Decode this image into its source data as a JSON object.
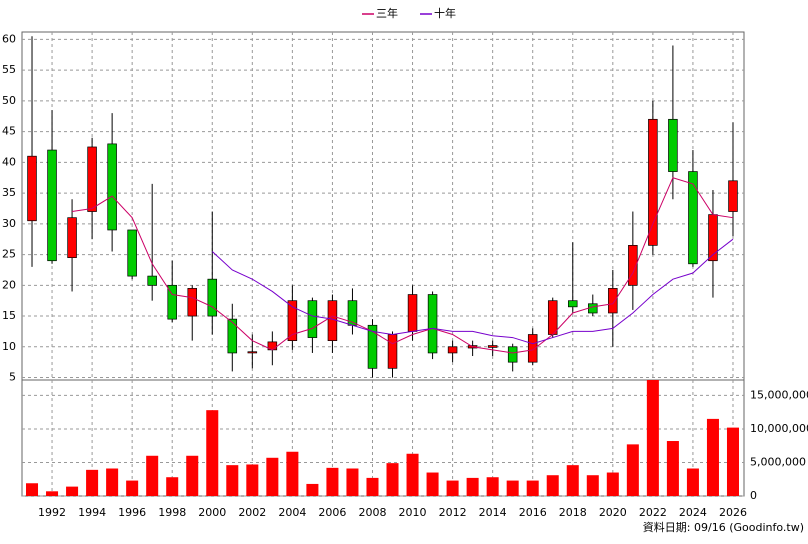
{
  "chart_data": [
    {
      "type": "candlestick",
      "x": [
        1991,
        1992,
        1993,
        1994,
        1995,
        1996,
        1997,
        1998,
        1999,
        2000,
        2001,
        2002,
        2003,
        2004,
        2005,
        2006,
        2007,
        2008,
        2009,
        2010,
        2011,
        2012,
        2013,
        2014,
        2015,
        2016,
        2017,
        2018,
        2019,
        2020,
        2021,
        2022,
        2023,
        2024,
        2025,
        2026
      ],
      "open": [
        30.5,
        42,
        24.5,
        32,
        43,
        29,
        21.5,
        20,
        15,
        21,
        14.5,
        9,
        9.5,
        11,
        17.5,
        11,
        17.5,
        13.5,
        6.5,
        12.5,
        18.5,
        9,
        9.8,
        9.9,
        10,
        7.5,
        12,
        17.5,
        17,
        15.5,
        20,
        26.5,
        47,
        38.5,
        24,
        32
      ],
      "close": [
        41,
        24,
        31,
        42.5,
        29,
        21.5,
        20,
        14.5,
        19.5,
        15,
        9,
        9.2,
        10.8,
        17.5,
        11.5,
        17.5,
        13.5,
        6.5,
        12,
        18.5,
        9,
        10,
        10.2,
        10.2,
        7.5,
        12,
        17.5,
        16.5,
        15.5,
        19.5,
        26.5,
        47,
        38.5,
        23.5,
        31.5,
        37
      ],
      "high": [
        60.5,
        48.5,
        34,
        44,
        48,
        29,
        36.5,
        24,
        20,
        32,
        17,
        12,
        12.5,
        20,
        18,
        18.5,
        19.5,
        14.5,
        12.5,
        20,
        19,
        11,
        11,
        11,
        10.5,
        13,
        18,
        27,
        18.5,
        22.5,
        32,
        50,
        59,
        42,
        35.5,
        46.5
      ],
      "low": [
        23,
        23.5,
        19,
        27.5,
        25.5,
        21,
        17.5,
        14,
        11,
        12,
        6,
        6.5,
        7,
        9.5,
        9,
        9,
        12,
        5,
        5,
        11,
        8,
        7.5,
        8.5,
        8.5,
        6,
        7,
        11.5,
        15.5,
        15,
        10,
        16,
        25,
        34,
        23,
        18,
        28
      ],
      "up_color": "#ff0000",
      "down_color": "#00cc00",
      "series": [
        {
          "name": "三年",
          "color": "#cc0066",
          "values": [
            null,
            null,
            32,
            32.5,
            34.5,
            31,
            23.5,
            18.5,
            18,
            16.5,
            14,
            11,
            9.5,
            12,
            13,
            15,
            14,
            12.5,
            10.5,
            12,
            13,
            12,
            10,
            9.5,
            9,
            9.5,
            12,
            15.5,
            16.5,
            17,
            22,
            30,
            37.5,
            36.5,
            31.5,
            31
          ]
        },
        {
          "name": "十年",
          "color": "#7700cc",
          "values": [
            null,
            null,
            null,
            null,
            null,
            null,
            null,
            null,
            null,
            25.5,
            22.5,
            21,
            19,
            16.5,
            15,
            14.5,
            13.5,
            12.5,
            12,
            12.5,
            13,
            12.5,
            12.5,
            11.8,
            11.5,
            10.5,
            11.5,
            12.5,
            12.5,
            13,
            15.5,
            18.5,
            21,
            22,
            25,
            27.5
          ]
        }
      ],
      "xlim": [
        1990.5,
        2026.55
      ],
      "xticks": [
        1992,
        1994,
        1996,
        1998,
        2000,
        2002,
        2004,
        2006,
        2008,
        2010,
        2012,
        2014,
        2016,
        2018,
        2020,
        2022,
        2024,
        2026
      ],
      "ylim": [
        4.6,
        61.2
      ],
      "yticks": [
        5,
        10,
        15,
        20,
        25,
        30,
        35,
        40,
        45,
        50,
        55,
        60
      ],
      "grid": true
    },
    {
      "type": "bar",
      "x": [
        1991,
        1992,
        1993,
        1994,
        1995,
        1996,
        1997,
        1998,
        1999,
        2000,
        2001,
        2002,
        2003,
        2004,
        2005,
        2006,
        2007,
        2008,
        2009,
        2010,
        2011,
        2012,
        2013,
        2014,
        2015,
        2016,
        2017,
        2018,
        2019,
        2020,
        2021,
        2022,
        2023,
        2024,
        2025,
        2026
      ],
      "values": [
        1900000,
        700000,
        1400000,
        3900000,
        4100000,
        2300000,
        6000000,
        2800000,
        6000000,
        12800000,
        4600000,
        4700000,
        5700000,
        6600000,
        1800000,
        4200000,
        4100000,
        2700000,
        4900000,
        6300000,
        3500000,
        2300000,
        2700000,
        2800000,
        2300000,
        2300000,
        3100000,
        4600000,
        3100000,
        3500000,
        7700000,
        17300000,
        8200000,
        4100000,
        11500000,
        10200000
      ],
      "color": "#ff0000",
      "xlim": [
        1990.5,
        2026.55
      ],
      "ylim": [
        0,
        17300000
      ],
      "yticks": [
        0,
        {
          "value": 5000000,
          "label": "5,000,000"
        },
        {
          "value": 10000000,
          "label": "10,000,000"
        },
        {
          "value": 15000000,
          "label": "15,000,000"
        }
      ],
      "grid": true,
      "source": "資料日期: 09/16 (Goodinfo.tw)"
    }
  ]
}
